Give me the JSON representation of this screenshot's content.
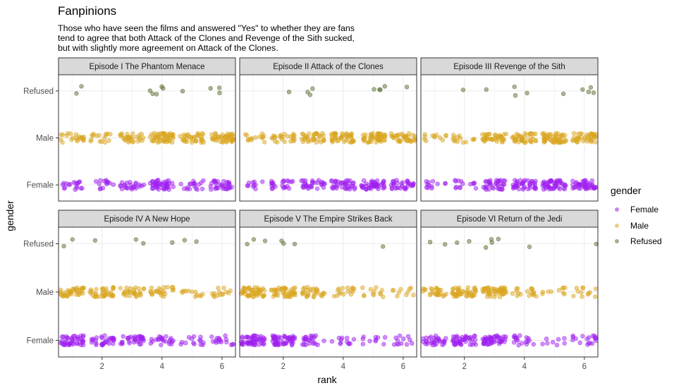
{
  "chart_data": {
    "type": "scatter",
    "title": "Fanpinions",
    "subtitle_lines": [
      "Those who have seen the films and answered \"Yes\" to whether they are fans",
      "tend to agree that both Attack of the Clones and Revenge of the Sith sucked,",
      "but with slightly more agreement on Attack of the Clones."
    ],
    "xlabel": "rank",
    "ylabel": "gender",
    "x_ticks": [
      "2",
      "4",
      "6"
    ],
    "y_categories": [
      "Female",
      "Male",
      "Refused"
    ],
    "xlim": [
      0.55,
      6.45
    ],
    "jitter": true,
    "grid": true,
    "legend": {
      "title": "gender",
      "position": "right",
      "entries": [
        "Female",
        "Male",
        "Refused"
      ]
    },
    "colors": {
      "Female": "#A020F0",
      "Male": "#DAA520",
      "Refused": "#556B2F"
    },
    "facets": [
      {
        "title": "Episode I  The Phantom Menace",
        "counts": {
          "Female": [
            18,
            14,
            24,
            44,
            18,
            32
          ],
          "Male": [
            22,
            16,
            30,
            50,
            34,
            46
          ],
          "Refused": [
            2,
            0,
            0,
            5,
            1,
            3
          ]
        }
      },
      {
        "title": "Episode II  Attack of the Clones",
        "counts": {
          "Female": [
            10,
            22,
            30,
            36,
            46,
            32
          ],
          "Male": [
            14,
            24,
            34,
            44,
            52,
            36
          ],
          "Refused": [
            0,
            1,
            3,
            0,
            4,
            1
          ]
        }
      },
      {
        "title": "Episode III  Revenge of the Sith",
        "counts": {
          "Female": [
            12,
            14,
            36,
            40,
            48,
            46
          ],
          "Male": [
            12,
            14,
            38,
            40,
            52,
            40
          ],
          "Refused": [
            0,
            1,
            1,
            3,
            1,
            4
          ]
        }
      },
      {
        "title": "Episode IV  A New Hope",
        "counts": {
          "Female": [
            44,
            32,
            32,
            22,
            14,
            16
          ],
          "Male": [
            40,
            36,
            30,
            24,
            12,
            14
          ],
          "Refused": [
            2,
            1,
            2,
            1,
            2,
            0
          ]
        }
      },
      {
        "title": "Episode V The Empire Strikes Back",
        "counts": {
          "Female": [
            54,
            54,
            24,
            12,
            10,
            12
          ],
          "Male": [
            48,
            42,
            28,
            16,
            12,
            10
          ],
          "Refused": [
            3,
            3,
            0,
            0,
            1,
            0
          ]
        }
      },
      {
        "title": "Episode VI Return of the Jedi",
        "counts": {
          "Female": [
            30,
            42,
            48,
            18,
            8,
            18
          ],
          "Male": [
            26,
            44,
            48,
            18,
            10,
            12
          ],
          "Refused": [
            2,
            2,
            4,
            1,
            0,
            1
          ]
        }
      }
    ]
  }
}
